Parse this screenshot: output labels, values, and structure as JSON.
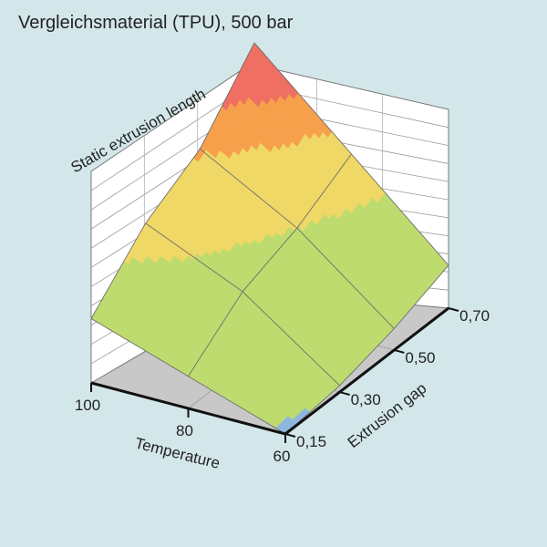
{
  "chart_data": {
    "type": "surface3d",
    "title": "Vergleichsmaterial (TPU), 500 bar",
    "zlabel": "Static extrusion length",
    "xlabel": "Temperature",
    "ylabel": "Extrusion gap",
    "x_ticks": [
      "100",
      "80",
      "60"
    ],
    "y_ticks": [
      "0,15",
      "0,30",
      "0,50",
      "0,70"
    ],
    "z_ticks_count": 11,
    "grid": true,
    "band_colors": [
      "#8db7df",
      "#bedb6f",
      "#f0d866",
      "#f6a04c",
      "#ef6f63"
    ],
    "surface_levels": [
      [
        0.0,
        0.03,
        0.1,
        0.2
      ],
      [
        0.15,
        0.35,
        0.45,
        0.6
      ],
      [
        0.3,
        0.55,
        0.7,
        1.0
      ]
    ]
  }
}
